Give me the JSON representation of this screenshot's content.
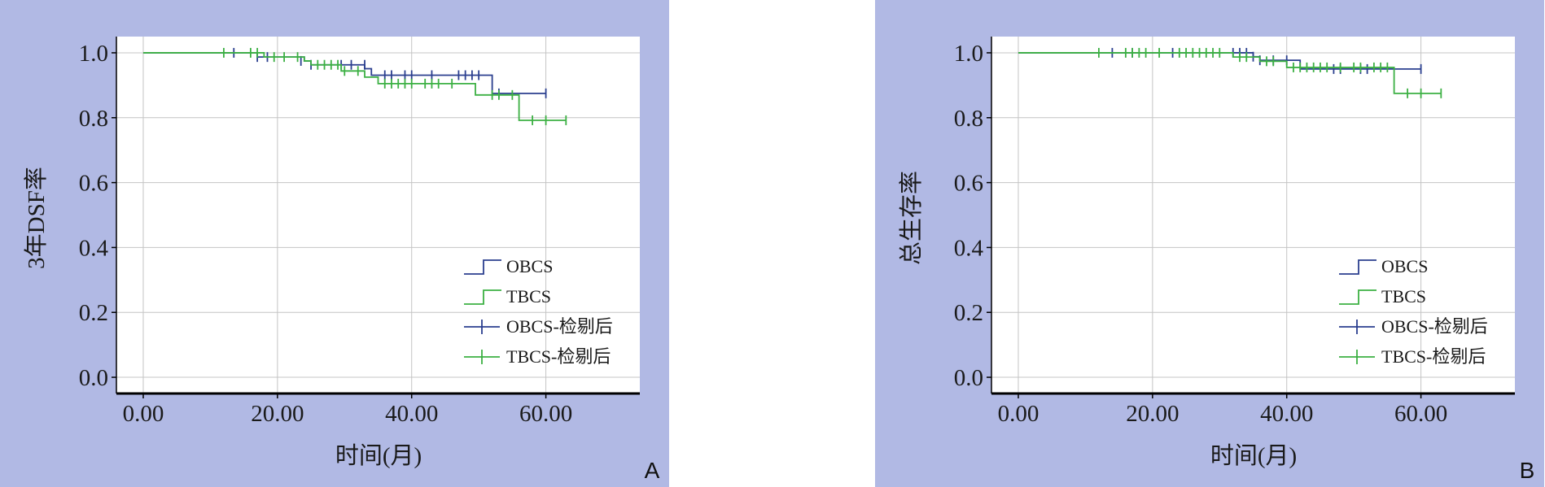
{
  "figure": {
    "background_color": "#b1b9e4"
  },
  "chart_data": [
    {
      "panel": "A",
      "type": "line",
      "step": true,
      "xlabel": "时间(月)",
      "ylabel": "3年DSF率",
      "xlim": [
        -4,
        74
      ],
      "ylim": [
        -0.05,
        1.05
      ],
      "xticks": [
        0,
        20,
        40,
        60
      ],
      "xtick_labels": [
        "0.00",
        "20.00",
        "40.00",
        "60.00"
      ],
      "yticks": [
        0.0,
        0.2,
        0.4,
        0.6,
        0.8,
        1.0
      ],
      "ytick_labels": [
        "0.0",
        "0.2",
        "0.4",
        "0.6",
        "0.8",
        "1.0"
      ],
      "grid": true,
      "legend_position": "bottom-right",
      "legend": [
        "OBCS",
        "TBCS",
        "OBCS-检剔后",
        "TBCS-检剔后"
      ],
      "series": [
        {
          "name": "OBCS",
          "color": "#2b3f8f",
          "steps": [
            [
              0,
              1.0
            ],
            [
              17,
              0.987
            ],
            [
              24,
              0.975
            ],
            [
              25,
              0.963
            ],
            [
              33,
              0.951
            ],
            [
              34,
              0.931
            ],
            [
              52,
              0.875
            ],
            [
              60,
              0.875
            ]
          ],
          "censored": [
            [
              13.5,
              1.0
            ],
            [
              17,
              0.987
            ],
            [
              18.5,
              0.987
            ],
            [
              23.5,
              0.975
            ],
            [
              25,
              0.963
            ],
            [
              29.5,
              0.963
            ],
            [
              31,
              0.963
            ],
            [
              33,
              0.963
            ],
            [
              36,
              0.931
            ],
            [
              37,
              0.931
            ],
            [
              39,
              0.931
            ],
            [
              40,
              0.931
            ],
            [
              43,
              0.931
            ],
            [
              47,
              0.931
            ],
            [
              48,
              0.931
            ],
            [
              49,
              0.931
            ],
            [
              50,
              0.931
            ],
            [
              53,
              0.875
            ],
            [
              60,
              0.875
            ]
          ]
        },
        {
          "name": "TBCS",
          "color": "#3cb043",
          "steps": [
            [
              0,
              1.0
            ],
            [
              18,
              0.987
            ],
            [
              24,
              0.975
            ],
            [
              25,
              0.963
            ],
            [
              29.5,
              0.944
            ],
            [
              33,
              0.925
            ],
            [
              35,
              0.905
            ],
            [
              49.5,
              0.87
            ],
            [
              56,
              0.792
            ],
            [
              63,
              0.792
            ]
          ],
          "censored": [
            [
              12,
              1.0
            ],
            [
              16,
              1.0
            ],
            [
              17,
              1.0
            ],
            [
              19.5,
              0.987
            ],
            [
              21,
              0.987
            ],
            [
              23,
              0.987
            ],
            [
              26,
              0.963
            ],
            [
              27,
              0.963
            ],
            [
              28,
              0.963
            ],
            [
              29,
              0.963
            ],
            [
              30,
              0.944
            ],
            [
              32,
              0.944
            ],
            [
              36,
              0.905
            ],
            [
              37,
              0.905
            ],
            [
              38,
              0.905
            ],
            [
              39,
              0.905
            ],
            [
              40,
              0.905
            ],
            [
              42,
              0.905
            ],
            [
              43,
              0.905
            ],
            [
              44,
              0.905
            ],
            [
              46,
              0.905
            ],
            [
              52,
              0.87
            ],
            [
              53,
              0.87
            ],
            [
              55,
              0.87
            ],
            [
              58,
              0.792
            ],
            [
              60,
              0.792
            ],
            [
              63,
              0.792
            ]
          ]
        }
      ]
    },
    {
      "panel": "B",
      "type": "line",
      "step": true,
      "xlabel": "时间(月)",
      "ylabel": "总生存率",
      "xlim": [
        -4,
        74
      ],
      "ylim": [
        -0.05,
        1.05
      ],
      "xticks": [
        0,
        20,
        40,
        60
      ],
      "xtick_labels": [
        "0.00",
        "20.00",
        "40.00",
        "60.00"
      ],
      "yticks": [
        0.0,
        0.2,
        0.4,
        0.6,
        0.8,
        1.0
      ],
      "ytick_labels": [
        "0.0",
        "0.2",
        "0.4",
        "0.6",
        "0.8",
        "1.0"
      ],
      "grid": true,
      "legend_position": "bottom-right",
      "legend": [
        "OBCS",
        "TBCS",
        "OBCS-检剔后",
        "TBCS-检剔后"
      ],
      "series": [
        {
          "name": "OBCS",
          "color": "#2b3f8f",
          "steps": [
            [
              0,
              1.0
            ],
            [
              35,
              0.988
            ],
            [
              36,
              0.977
            ],
            [
              42,
              0.95
            ],
            [
              60,
              0.95
            ]
          ],
          "censored": [
            [
              14,
              1.0
            ],
            [
              17,
              1.0
            ],
            [
              23,
              1.0
            ],
            [
              32,
              1.0
            ],
            [
              33,
              1.0
            ],
            [
              34,
              1.0
            ],
            [
              35,
              0.988
            ],
            [
              36,
              0.977
            ],
            [
              38,
              0.977
            ],
            [
              40,
              0.977
            ],
            [
              47,
              0.95
            ],
            [
              48,
              0.95
            ],
            [
              51,
              0.95
            ],
            [
              52,
              0.95
            ],
            [
              60,
              0.95
            ]
          ]
        },
        {
          "name": "TBCS",
          "color": "#3cb043",
          "steps": [
            [
              0,
              1.0
            ],
            [
              32,
              0.987
            ],
            [
              36,
              0.974
            ],
            [
              40,
              0.955
            ],
            [
              56,
              0.875
            ],
            [
              63,
              0.875
            ]
          ],
          "censored": [
            [
              12,
              1.0
            ],
            [
              16,
              1.0
            ],
            [
              17,
              1.0
            ],
            [
              18,
              1.0
            ],
            [
              19,
              1.0
            ],
            [
              21,
              1.0
            ],
            [
              24,
              1.0
            ],
            [
              25,
              1.0
            ],
            [
              26,
              1.0
            ],
            [
              27,
              1.0
            ],
            [
              28,
              1.0
            ],
            [
              29,
              1.0
            ],
            [
              30,
              1.0
            ],
            [
              33,
              0.987
            ],
            [
              34,
              0.987
            ],
            [
              37,
              0.974
            ],
            [
              38,
              0.974
            ],
            [
              41,
              0.955
            ],
            [
              42,
              0.955
            ],
            [
              43,
              0.955
            ],
            [
              44,
              0.955
            ],
            [
              45,
              0.955
            ],
            [
              46,
              0.955
            ],
            [
              48,
              0.955
            ],
            [
              50,
              0.955
            ],
            [
              51,
              0.955
            ],
            [
              53,
              0.955
            ],
            [
              54,
              0.955
            ],
            [
              55,
              0.955
            ],
            [
              58,
              0.875
            ],
            [
              60,
              0.875
            ],
            [
              63,
              0.875
            ]
          ]
        }
      ]
    }
  ]
}
